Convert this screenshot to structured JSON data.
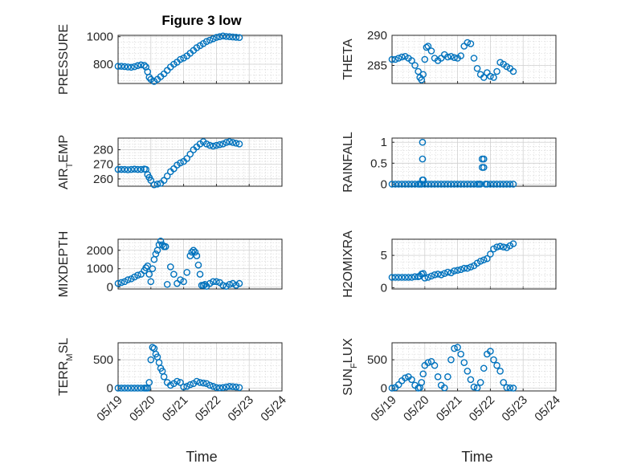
{
  "chart_data": [
    {
      "type": "scatter",
      "title": "Figure 3 low",
      "ylabel": "PRESSURE",
      "ylim": [
        660,
        1010
      ],
      "yticks": [
        800,
        1000
      ],
      "xticks": [
        0,
        1,
        2,
        3,
        4,
        5
      ],
      "xtick_labels": [
        "05/19",
        "05/20",
        "05/21",
        "05/22",
        "05/23",
        "05/24"
      ],
      "xlim": [
        0,
        5
      ],
      "x": [
        0.0,
        0.1,
        0.2,
        0.3,
        0.4,
        0.5,
        0.6,
        0.7,
        0.8,
        0.85,
        0.9,
        0.95,
        1.0,
        1.1,
        1.2,
        1.3,
        1.4,
        1.5,
        1.6,
        1.7,
        1.8,
        1.9,
        2.0,
        2.1,
        2.2,
        2.3,
        2.4,
        2.5,
        2.6,
        2.7,
        2.8,
        2.9,
        3.0,
        3.1,
        3.2,
        3.3,
        3.4,
        3.5,
        3.6,
        3.7
      ],
      "y": [
        785,
        785,
        783,
        780,
        778,
        782,
        790,
        795,
        792,
        780,
        745,
        705,
        690,
        675,
        690,
        710,
        730,
        755,
        780,
        800,
        815,
        835,
        845,
        860,
        880,
        900,
        920,
        935,
        950,
        965,
        975,
        985,
        995,
        1000,
        1005,
        1002,
        1000,
        998,
        996,
        994
      ]
    },
    {
      "type": "scatter",
      "ylabel": "THETA",
      "ylim": [
        282,
        290
      ],
      "yticks": [
        285,
        290
      ],
      "xlim": [
        0,
        5
      ],
      "x": [
        0.0,
        0.1,
        0.2,
        0.3,
        0.4,
        0.5,
        0.6,
        0.7,
        0.8,
        0.85,
        0.9,
        0.95,
        1.0,
        1.05,
        1.1,
        1.2,
        1.3,
        1.4,
        1.5,
        1.6,
        1.7,
        1.8,
        1.9,
        2.0,
        2.1,
        2.2,
        2.3,
        2.4,
        2.5,
        2.6,
        2.7,
        2.8,
        2.9,
        3.0,
        3.1,
        3.2,
        3.3,
        3.4,
        3.5,
        3.6,
        3.7
      ],
      "y": [
        286,
        286,
        286.2,
        286.4,
        286.5,
        286.2,
        285.8,
        285,
        284,
        283,
        282.6,
        283.5,
        286,
        288,
        288.2,
        287.4,
        286.2,
        285.8,
        286.2,
        286.8,
        286.4,
        286.5,
        286.3,
        286.2,
        286.6,
        288.2,
        288.8,
        288.6,
        286.2,
        284.5,
        283.5,
        283,
        283.8,
        283.2,
        283,
        284,
        285.5,
        285.2,
        284.8,
        284.5,
        284.0
      ]
    },
    {
      "type": "scatter",
      "ylabel": "AIR_TEMP",
      "ylim": [
        255,
        288
      ],
      "yticks": [
        260,
        270,
        280
      ],
      "xlim": [
        0,
        5
      ],
      "x": [
        0.0,
        0.1,
        0.2,
        0.3,
        0.4,
        0.5,
        0.6,
        0.7,
        0.8,
        0.85,
        0.9,
        0.95,
        1.0,
        1.1,
        1.2,
        1.3,
        1.4,
        1.5,
        1.6,
        1.7,
        1.8,
        1.9,
        2.0,
        2.1,
        2.2,
        2.3,
        2.4,
        2.5,
        2.6,
        2.7,
        2.8,
        2.9,
        3.0,
        3.1,
        3.2,
        3.3,
        3.4,
        3.5,
        3.6,
        3.7
      ],
      "y": [
        266.5,
        266.5,
        266.5,
        266.3,
        266.5,
        266.7,
        266.5,
        266.5,
        266.8,
        266.5,
        263,
        261,
        259,
        256,
        256.5,
        257,
        259,
        262,
        265,
        267,
        269.5,
        271,
        272,
        274,
        277,
        280,
        282,
        284,
        285.5,
        284,
        283,
        282.5,
        283,
        283.5,
        284,
        285,
        285.5,
        285,
        284.5,
        284.0
      ]
    },
    {
      "type": "scatter",
      "ylabel": "RAINFALL",
      "ylim": [
        -0.05,
        1.1
      ],
      "yticks": [
        0,
        0.5,
        1
      ],
      "xlim": [
        0,
        5
      ],
      "x": [
        0.0,
        0.1,
        0.2,
        0.3,
        0.4,
        0.5,
        0.6,
        0.7,
        0.8,
        0.85,
        0.9,
        0.93,
        0.93,
        0.93,
        0.95,
        1.0,
        1.1,
        1.2,
        1.3,
        1.4,
        1.5,
        1.6,
        1.7,
        1.8,
        1.9,
        2.0,
        2.1,
        2.2,
        2.3,
        2.4,
        2.5,
        2.6,
        2.65,
        2.7,
        2.75,
        2.75,
        2.8,
        2.8,
        2.85,
        2.9,
        3.0,
        3.1,
        3.2,
        3.3,
        3.4,
        3.5,
        3.6,
        3.7
      ],
      "y": [
        0,
        0,
        0,
        0,
        0,
        0,
        0,
        0,
        0,
        0,
        0,
        0.6,
        1.0,
        0.1,
        0.1,
        0,
        0,
        0,
        0,
        0,
        0,
        0,
        0,
        0,
        0,
        0,
        0,
        0,
        0,
        0,
        0,
        0,
        0,
        0,
        0.6,
        0.4,
        0.6,
        0.4,
        0,
        0,
        0,
        0,
        0,
        0,
        0,
        0,
        0,
        0
      ]
    },
    {
      "type": "scatter",
      "ylabel": "MIXDEPTH",
      "ylim": [
        -100,
        2600
      ],
      "yticks": [
        0,
        1000,
        2000
      ],
      "xlim": [
        0,
        5
      ],
      "x": [
        0.0,
        0.1,
        0.2,
        0.3,
        0.4,
        0.5,
        0.6,
        0.7,
        0.8,
        0.85,
        0.9,
        0.95,
        1.0,
        1.05,
        1.1,
        1.15,
        1.2,
        1.25,
        1.3,
        1.35,
        1.4,
        1.45,
        1.5,
        1.6,
        1.7,
        1.8,
        1.9,
        2.0,
        2.1,
        2.2,
        2.25,
        2.3,
        2.35,
        2.4,
        2.45,
        2.5,
        2.55,
        2.6,
        2.65,
        2.7,
        2.8,
        2.9,
        3.0,
        3.1,
        3.2,
        3.3,
        3.4,
        3.5,
        3.6,
        3.7
      ],
      "y": [
        200,
        250,
        300,
        400,
        450,
        550,
        650,
        700,
        900,
        1050,
        1150,
        700,
        300,
        1000,
        1500,
        1800,
        2000,
        2300,
        2500,
        2300,
        2200,
        2200,
        150,
        1100,
        700,
        200,
        400,
        300,
        800,
        1700,
        1900,
        2000,
        1900,
        1700,
        1200,
        700,
        100,
        100,
        150,
        50,
        200,
        300,
        300,
        250,
        100,
        50,
        150,
        200,
        100,
        200
      ]
    },
    {
      "type": "scatter",
      "ylabel": "H2OMIXRA",
      "ylim": [
        -0.2,
        7.5
      ],
      "yticks": [
        0,
        5
      ],
      "xlim": [
        0,
        5
      ],
      "x": [
        0.0,
        0.1,
        0.2,
        0.3,
        0.4,
        0.5,
        0.6,
        0.7,
        0.8,
        0.85,
        0.9,
        0.95,
        1.0,
        1.1,
        1.2,
        1.3,
        1.4,
        1.5,
        1.6,
        1.7,
        1.8,
        1.9,
        2.0,
        2.1,
        2.2,
        2.3,
        2.4,
        2.5,
        2.6,
        2.7,
        2.8,
        2.9,
        3.0,
        3.1,
        3.2,
        3.3,
        3.4,
        3.5,
        3.6,
        3.7
      ],
      "y": [
        1.6,
        1.6,
        1.6,
        1.6,
        1.6,
        1.6,
        1.6,
        1.7,
        1.7,
        1.8,
        2.1,
        2.2,
        1.5,
        1.6,
        1.8,
        2.0,
        2.1,
        2.0,
        2.2,
        2.4,
        2.3,
        2.6,
        2.7,
        2.8,
        3.0,
        3.0,
        3.2,
        3.4,
        3.8,
        4.1,
        4.3,
        4.5,
        5.2,
        6.0,
        6.3,
        6.4,
        6.3,
        6.2,
        6.5,
        6.8
      ]
    },
    {
      "type": "scatter",
      "ylabel": "TERR_MSL",
      "ylim": [
        -50,
        800
      ],
      "yticks": [
        0,
        500
      ],
      "xlim": [
        0,
        5
      ],
      "x": [
        0.0,
        0.1,
        0.2,
        0.3,
        0.4,
        0.5,
        0.6,
        0.7,
        0.8,
        0.85,
        0.9,
        0.95,
        1.0,
        1.05,
        1.1,
        1.15,
        1.2,
        1.25,
        1.3,
        1.35,
        1.4,
        1.5,
        1.6,
        1.7,
        1.8,
        1.9,
        2.0,
        2.1,
        2.2,
        2.3,
        2.4,
        2.5,
        2.6,
        2.7,
        2.8,
        2.9,
        3.0,
        3.1,
        3.2,
        3.3,
        3.4,
        3.5,
        3.6,
        3.7
      ],
      "y": [
        0,
        0,
        0,
        0,
        0,
        0,
        0,
        0,
        0,
        0,
        0,
        100,
        500,
        720,
        700,
        600,
        550,
        450,
        350,
        300,
        200,
        100,
        50,
        80,
        120,
        100,
        20,
        30,
        60,
        80,
        120,
        100,
        90,
        80,
        50,
        30,
        10,
        5,
        10,
        20,
        30,
        25,
        20,
        10
      ]
    },
    {
      "type": "scatter",
      "ylabel": "SUN_FLUX",
      "ylim": [
        -50,
        800
      ],
      "yticks": [
        0,
        500
      ],
      "xlim": [
        0,
        5
      ],
      "x": [
        0.0,
        0.1,
        0.2,
        0.3,
        0.4,
        0.5,
        0.6,
        0.7,
        0.8,
        0.85,
        0.9,
        0.95,
        1.0,
        1.1,
        1.2,
        1.3,
        1.4,
        1.5,
        1.6,
        1.7,
        1.8,
        1.9,
        2.0,
        2.1,
        2.2,
        2.3,
        2.4,
        2.5,
        2.6,
        2.7,
        2.8,
        2.9,
        3.0,
        3.1,
        3.2,
        3.3,
        3.4,
        3.5,
        3.6,
        3.7
      ],
      "y": [
        0,
        10,
        60,
        130,
        180,
        200,
        150,
        50,
        0,
        10,
        100,
        250,
        400,
        450,
        470,
        400,
        200,
        50,
        5,
        200,
        500,
        700,
        720,
        600,
        450,
        300,
        150,
        20,
        5,
        100,
        350,
        600,
        650,
        500,
        400,
        300,
        100,
        10,
        5,
        0
      ]
    }
  ],
  "xlabel": "Time"
}
